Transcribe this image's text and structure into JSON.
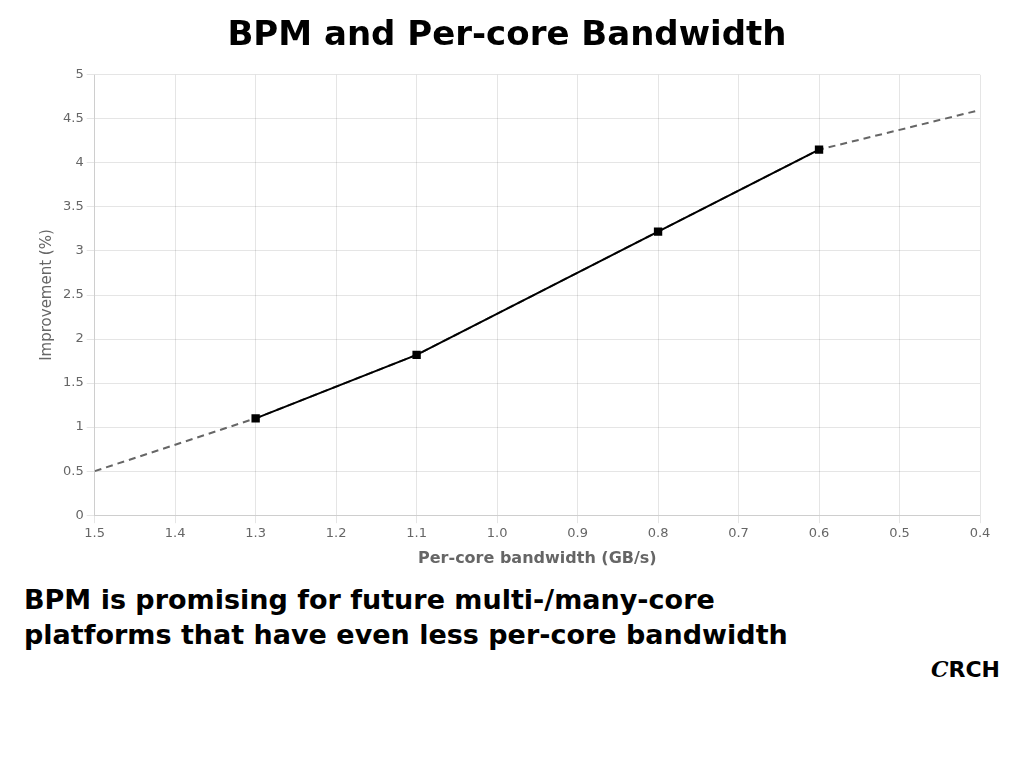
{
  "chart_data": {
    "type": "line",
    "title": "BPM and Per-core Bandwidth",
    "xlabel": "Per-core bandwidth (GB/s)",
    "ylabel": "Improvement (%)",
    "annotations": [
      "BPM is promising for future multi-/many-core",
      "platforms that have even less per-core bandwidth",
      "C",
      "RCH"
    ],
    "series": [
      {
        "x": [
          1.5,
          1.3,
          1.1,
          0.8,
          0.6,
          0.4
        ],
        "values": [
          0.5,
          1.1,
          1.82,
          3.22,
          4.15,
          4.6
        ],
        "color": "#666666",
        "line_style": "dashed",
        "marker": "none"
      },
      {
        "x": [
          1.3,
          1.1,
          0.8,
          0.6
        ],
        "values": [
          1.1,
          1.82,
          3.22,
          4.15
        ],
        "color": "#000000",
        "line_style": "solid",
        "marker": "square"
      }
    ],
    "xlim": [
      1.5,
      0.4
    ],
    "ylim": [
      0,
      5
    ],
    "xticks": [
      1.5,
      1.4,
      1.3,
      1.2,
      1.1,
      {
        "value": 1.0,
        "label": "1.0"
      },
      0.9,
      0.8,
      0.7,
      0.6,
      0.5,
      0.4
    ],
    "yticks": [
      0,
      0.5,
      1,
      1.5,
      2,
      2.5,
      3,
      3.5,
      4,
      4.5,
      5
    ],
    "grid": true
  }
}
